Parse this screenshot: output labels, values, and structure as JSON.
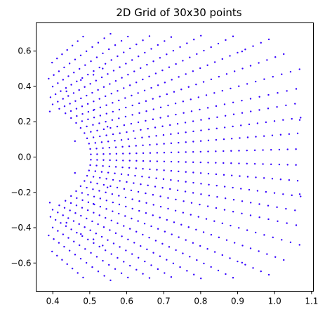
{
  "chart_data": {
    "type": "scatter",
    "title": "2D Grid of 30x30 points",
    "xlabel": "",
    "ylabel": "",
    "xlim": [
      0.355,
      1.105
    ],
    "ylim": [
      -0.76,
      0.76
    ],
    "x_ticks": [
      "0.4",
      "0.5",
      "0.6",
      "0.7",
      "0.8",
      "0.9",
      "1.0",
      "1.1"
    ],
    "y_ticks": [
      "−0.6",
      "−0.4",
      "−0.2",
      "0.0",
      "0.2",
      "0.4",
      "0.6"
    ],
    "grid": false,
    "point_color": "#3300ff",
    "series": [
      {
        "points": [
          [
            0.392,
            0.258
          ],
          [
            0.392,
            -0.258
          ],
          [
            0.437,
            0.372
          ],
          [
            0.437,
            -0.372
          ],
          [
            0.46,
            0.09
          ],
          [
            0.46,
            -0.09
          ],
          [
            0.476,
            0.436
          ],
          [
            0.476,
            -0.436
          ],
          [
            0.51,
            0.466
          ],
          [
            0.51,
            -0.466
          ],
          [
            0.51,
            0.265
          ],
          [
            0.51,
            -0.265
          ],
          [
            0.535,
            0.501
          ],
          [
            0.535,
            -0.501
          ],
          [
            0.548,
            0.172
          ],
          [
            0.548,
            -0.172
          ],
          [
            0.912,
            0.598
          ],
          [
            0.912,
            -0.598
          ],
          [
            1.068,
            0.21
          ],
          [
            1.068,
            -0.21
          ]
        ]
      }
    ],
    "grid_curves": {
      "u_count": 30,
      "v_count": 30,
      "a_range": [
        0.18,
        1.0
      ],
      "b_range": [
        -0.85,
        0.85
      ],
      "arc_span": 0.34,
      "inner_x": 0.392,
      "outer_scale": 0.68
    }
  }
}
